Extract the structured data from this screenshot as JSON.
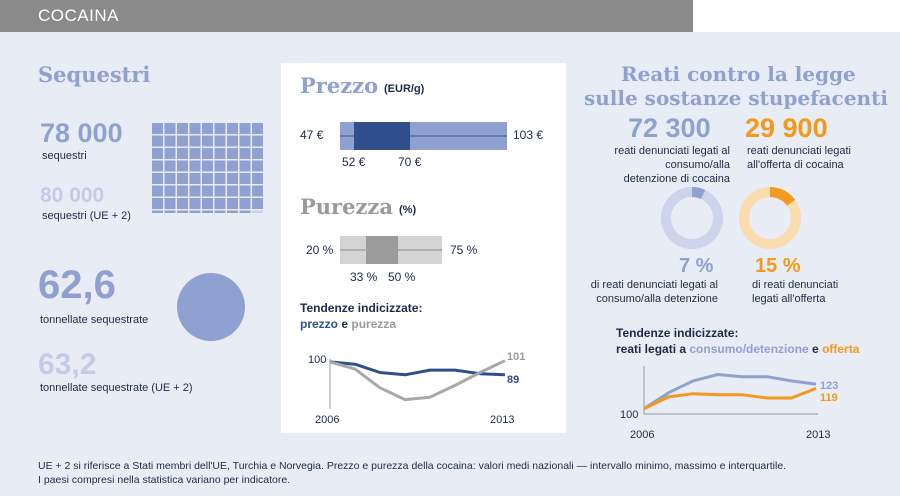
{
  "header": {
    "title": "COCAINA"
  },
  "seizures": {
    "title": "Sequestri",
    "count_eu": "78 000",
    "count_eu_label": "sequestri",
    "count_eu2": "80 000",
    "count_eu2_label": "sequestri (UE + 2)",
    "tonnes_eu": "62,6",
    "tonnes_eu_label": "tonnellate sequestrate",
    "tonnes_eu2": "63,2",
    "tonnes_eu2_label": "tonnellate sequestrate (UE + 2)",
    "grid_filled_fraction": 0.975
  },
  "price": {
    "title": "Prezzo",
    "unit": "(EUR/g)",
    "min": "47 €",
    "max": "103 €",
    "q1": "52 €",
    "q3": "70 €",
    "values": {
      "min": 47,
      "q1": 52,
      "q3": 70,
      "max": 103
    }
  },
  "purity": {
    "title": "Purezza",
    "unit": "(%)",
    "min": "20 %",
    "max": "75 %",
    "q1": "33 %",
    "q3": "50 %",
    "values": {
      "min": 20,
      "q1": 33,
      "q3": 50,
      "max": 75
    }
  },
  "trends_price": {
    "title": "Tendenze indicizzate:",
    "legend_a": "prezzo",
    "legend_and": " e ",
    "legend_b": "purezza",
    "start_label": "100",
    "x_start": "2006",
    "x_end": "2013",
    "end_a": "89",
    "end_b": "101"
  },
  "offences": {
    "title_line1": "Reati contro la legge",
    "title_line2": "sulle sostanze stupefacenti",
    "use_count": "72 300",
    "use_label": "reati denunciati legati al consumo/alla detenzione di cocaina",
    "supply_count": "29 900",
    "supply_label": "reati denunciati legati all'offerta di cocaina",
    "use_pct": "7 %",
    "use_pct_label": "di reati denunciati legati al consumo/alla detenzione",
    "supply_pct": "15 %",
    "supply_pct_label": "di reati denunciati legati all'offerta",
    "use_pct_value": 7,
    "supply_pct_value": 15
  },
  "trends_offences": {
    "title": "Tendenze indicizzate:",
    "subtitle_prefix": "reati legati a ",
    "legend_a": "consumo/detenzione",
    "legend_and": " e ",
    "legend_b": "offerta",
    "start_label": "100",
    "x_start": "2006",
    "x_end": "2013",
    "end_a": "123",
    "end_b": "119"
  },
  "footer": {
    "line1": "UE + 2 si riferisce a Stati membri dell'UE, Turchia e Norvegia. Prezzo e purezza della cocaina: valori medi nazionali — intervallo minimo, massimo e interquartile.",
    "line2": "I paesi compresi nella statistica variano per indicatore."
  },
  "chart_data": [
    {
      "type": "line",
      "title": "Tendenze indicizzate: prezzo e purezza",
      "x": [
        2006,
        2007,
        2008,
        2009,
        2010,
        2011,
        2012,
        2013
      ],
      "series": [
        {
          "name": "prezzo",
          "values": [
            100,
            98,
            91,
            89,
            93,
            93,
            90,
            89
          ]
        },
        {
          "name": "purezza",
          "values": [
            100,
            94,
            78,
            68,
            70,
            80,
            91,
            101
          ]
        }
      ],
      "ylim": [
        60,
        105
      ]
    },
    {
      "type": "line",
      "title": "Tendenze indicizzate: reati legati a consumo/detenzione e offerta",
      "x": [
        2006,
        2007,
        2008,
        2009,
        2010,
        2011,
        2012,
        2013
      ],
      "series": [
        {
          "name": "consumo/detenzione",
          "values": [
            100,
            115,
            126,
            132,
            130,
            130,
            126,
            123
          ]
        },
        {
          "name": "offerta",
          "values": [
            100,
            111,
            114,
            113,
            113,
            110,
            110,
            119
          ]
        }
      ],
      "ylim": [
        95,
        140
      ]
    }
  ]
}
